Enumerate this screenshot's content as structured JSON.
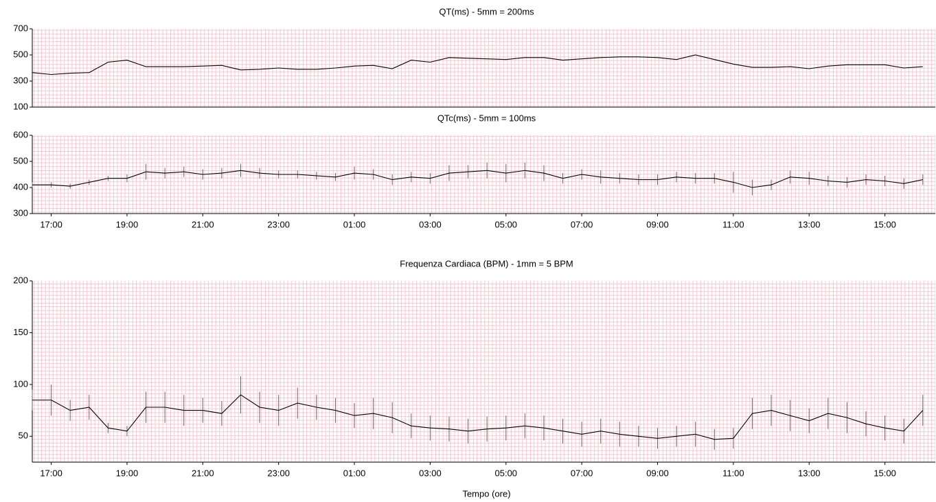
{
  "chart_data": [
    {
      "type": "line",
      "title": "QT(ms) - 5mm = 200ms",
      "x": [
        16.5,
        17,
        17.5,
        18,
        18.5,
        19,
        19.5,
        20,
        20.5,
        21,
        21.5,
        22,
        22.5,
        23,
        23.5,
        24,
        24.5,
        25,
        25.5,
        26,
        26.5,
        27,
        27.5,
        28,
        28.5,
        29,
        29.5,
        30,
        30.5,
        31,
        31.5,
        32,
        32.5,
        33,
        33.5,
        34,
        34.5,
        35,
        35.5,
        36,
        36.5,
        37,
        37.5,
        38,
        38.5,
        39,
        39.5,
        40
      ],
      "values": [
        365,
        350,
        360,
        365,
        445,
        460,
        410,
        410,
        410,
        415,
        420,
        385,
        390,
        400,
        390,
        390,
        400,
        415,
        420,
        395,
        460,
        445,
        480,
        475,
        470,
        465,
        480,
        480,
        460,
        470,
        480,
        485,
        485,
        480,
        465,
        500,
        465,
        430,
        405,
        405,
        410,
        395,
        415,
        425,
        425,
        425,
        400,
        410
      ],
      "color": "#000000",
      "xlim": [
        16.5,
        40.33
      ],
      "ylim": [
        100,
        700
      ],
      "yticks": [
        100,
        300,
        500,
        700
      ]
    },
    {
      "type": "line",
      "title": "QTc(ms) - 5mm = 100ms",
      "x": [
        16.5,
        17,
        17.5,
        18,
        18.5,
        19,
        19.5,
        20,
        20.5,
        21,
        21.5,
        22,
        22.5,
        23,
        23.5,
        24,
        24.5,
        25,
        25.5,
        26,
        26.5,
        27,
        27.5,
        28,
        28.5,
        29,
        29.5,
        30,
        30.5,
        31,
        31.5,
        32,
        32.5,
        33,
        33.5,
        34,
        34.5,
        35,
        35.5,
        36,
        36.5,
        37,
        37.5,
        38,
        38.5,
        39,
        39.5,
        40
      ],
      "values": [
        410,
        410,
        405,
        420,
        435,
        435,
        460,
        455,
        460,
        450,
        455,
        465,
        455,
        450,
        450,
        445,
        440,
        455,
        450,
        430,
        440,
        435,
        455,
        460,
        465,
        455,
        465,
        455,
        435,
        450,
        440,
        435,
        430,
        430,
        440,
        435,
        435,
        420,
        400,
        410,
        440,
        435,
        425,
        420,
        430,
        425,
        415,
        430
      ],
      "errors": [
        10,
        10,
        10,
        10,
        10,
        15,
        30,
        20,
        20,
        20,
        20,
        25,
        20,
        15,
        15,
        15,
        15,
        25,
        20,
        20,
        20,
        20,
        30,
        25,
        30,
        35,
        30,
        30,
        20,
        20,
        25,
        20,
        20,
        20,
        20,
        20,
        20,
        40,
        30,
        20,
        25,
        25,
        20,
        20,
        20,
        20,
        20,
        20
      ],
      "color": "#000000",
      "error_color": "#666666",
      "xlim": [
        16.5,
        40.33
      ],
      "ylim": [
        300,
        600
      ],
      "yticks": [
        300,
        400,
        500,
        600
      ],
      "xticks": [
        {
          "value": 17,
          "label": "17:00"
        },
        {
          "value": 19,
          "label": "19:00"
        },
        {
          "value": 21,
          "label": "21:00"
        },
        {
          "value": 23,
          "label": "23:00"
        },
        {
          "value": 25,
          "label": "01:00"
        },
        {
          "value": 27,
          "label": "03:00"
        },
        {
          "value": 29,
          "label": "05:00"
        },
        {
          "value": 31,
          "label": "07:00"
        },
        {
          "value": 33,
          "label": "09:00"
        },
        {
          "value": 35,
          "label": "11:00"
        },
        {
          "value": 37,
          "label": "13:00"
        },
        {
          "value": 39,
          "label": "15:00"
        }
      ]
    },
    {
      "type": "line",
      "title": "Frequenza Cardiaca (BPM) - 1mm = 5 BPM",
      "xlabel": "Tempo (ore)",
      "x": [
        16.5,
        17,
        17.5,
        18,
        18.5,
        19,
        19.5,
        20,
        20.5,
        21,
        21.5,
        22,
        22.5,
        23,
        23.5,
        24,
        24.5,
        25,
        25.5,
        26,
        26.5,
        27,
        27.5,
        28,
        28.5,
        29,
        29.5,
        30,
        30.5,
        31,
        31.5,
        32,
        32.5,
        33,
        33.5,
        34,
        34.5,
        35,
        35.5,
        36,
        36.5,
        37,
        37.5,
        38,
        38.5,
        39,
        39.5,
        40
      ],
      "values": [
        85,
        85,
        75,
        78,
        58,
        55,
        78,
        78,
        75,
        75,
        72,
        90,
        78,
        75,
        82,
        78,
        75,
        70,
        72,
        68,
        60,
        58,
        57,
        55,
        57,
        58,
        60,
        58,
        55,
        52,
        55,
        52,
        50,
        48,
        50,
        52,
        47,
        48,
        72,
        75,
        70,
        65,
        72,
        68,
        62,
        58,
        55,
        75
      ],
      "errors": [
        10,
        15,
        10,
        12,
        5,
        5,
        15,
        15,
        15,
        12,
        12,
        18,
        15,
        15,
        15,
        12,
        12,
        12,
        15,
        15,
        12,
        12,
        12,
        12,
        12,
        12,
        12,
        12,
        12,
        12,
        12,
        12,
        10,
        10,
        10,
        12,
        10,
        10,
        15,
        15,
        15,
        12,
        15,
        15,
        12,
        12,
        12,
        15
      ],
      "color": "#000000",
      "error_color": "#666666",
      "xlim": [
        16.5,
        40.33
      ],
      "ylim": [
        25,
        200
      ],
      "yticks": [
        50,
        100,
        150,
        200
      ],
      "xticks": [
        {
          "value": 17,
          "label": "17:00"
        },
        {
          "value": 19,
          "label": "19:00"
        },
        {
          "value": 21,
          "label": "21:00"
        },
        {
          "value": 23,
          "label": "23:00"
        },
        {
          "value": 25,
          "label": "01:00"
        },
        {
          "value": 27,
          "label": "03:00"
        },
        {
          "value": 29,
          "label": "05:00"
        },
        {
          "value": 31,
          "label": "07:00"
        },
        {
          "value": 33,
          "label": "09:00"
        },
        {
          "value": 35,
          "label": "11:00"
        },
        {
          "value": 37,
          "label": "13:00"
        },
        {
          "value": 39,
          "label": "15:00"
        }
      ]
    }
  ]
}
